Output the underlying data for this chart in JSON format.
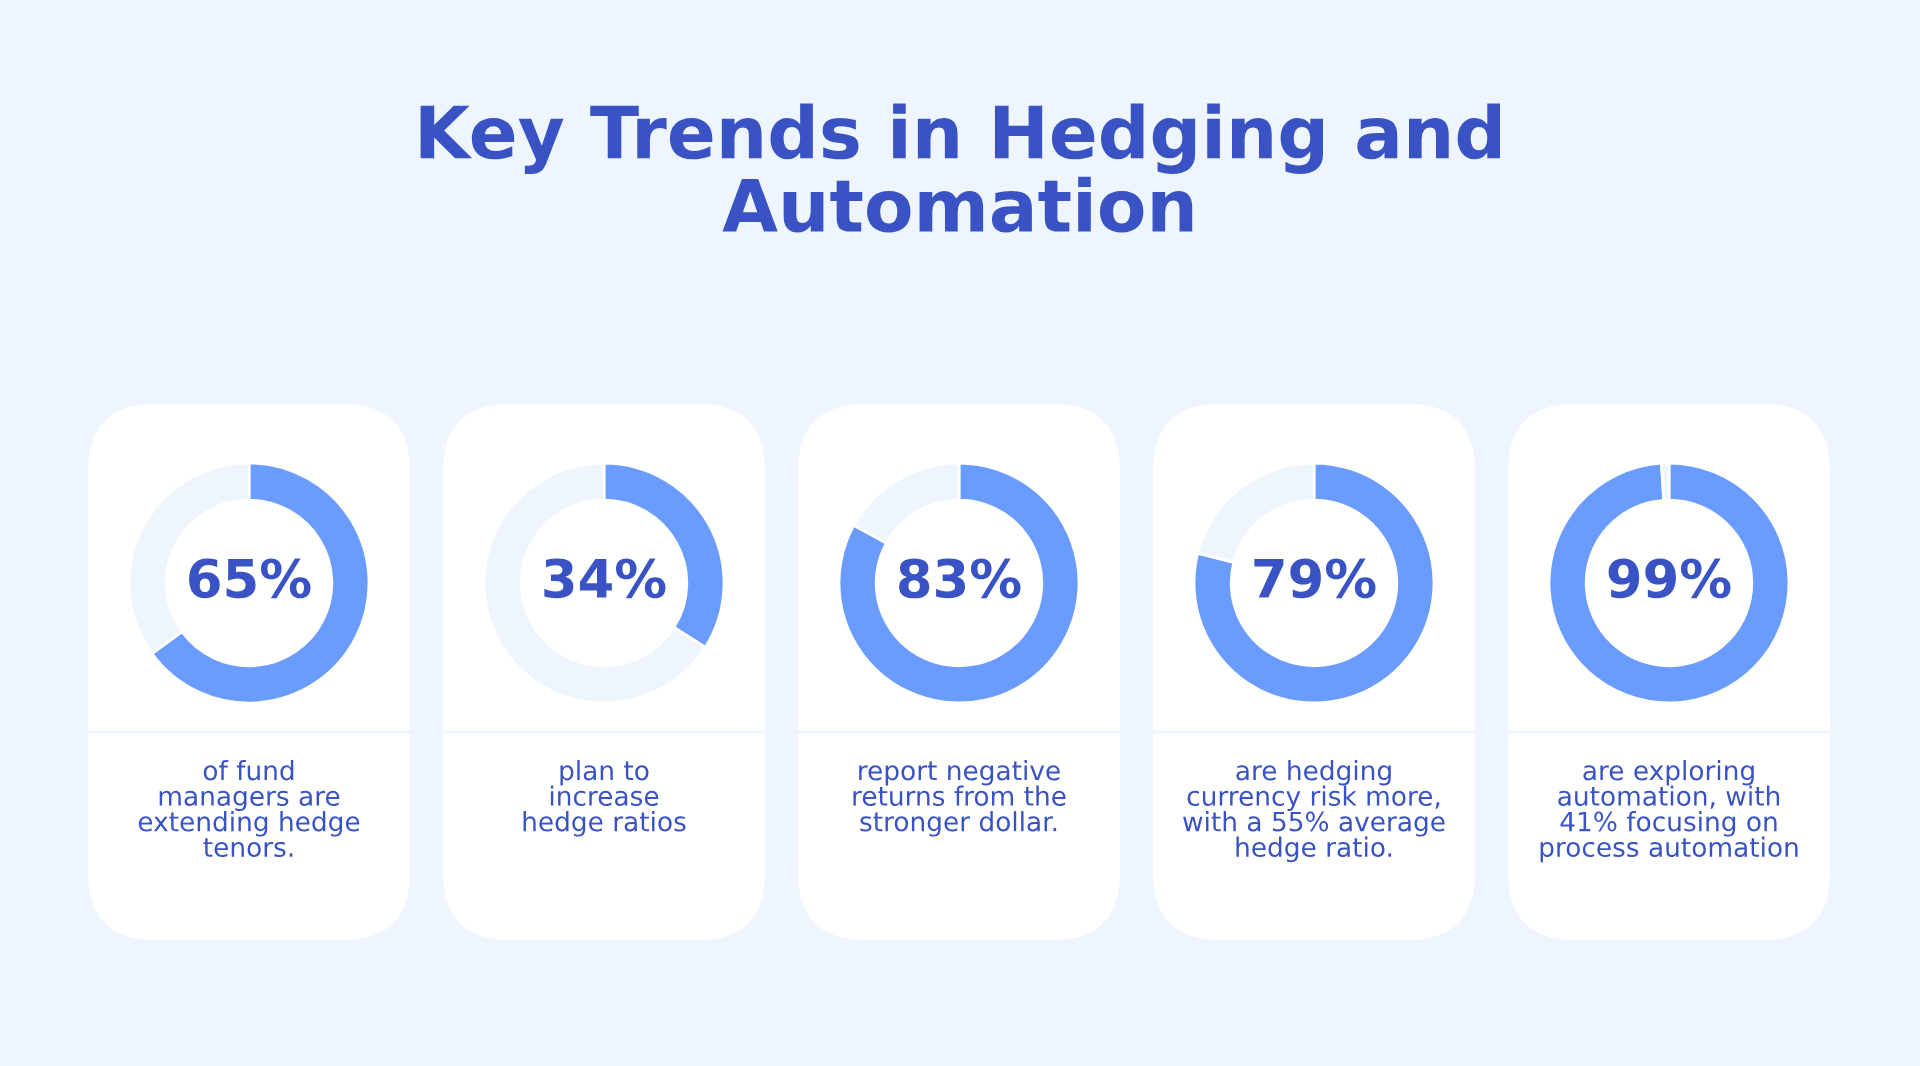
{
  "chart_data": [
    {
      "type": "other",
      "title": "Key Trends in Hedging and\nAutomation"
    },
    {
      "type": "donut",
      "categories": [
        null,
        null
      ],
      "values": [
        65,
        35
      ],
      "colors": [
        "#6a9bff",
        "#eef5fd"
      ],
      "value_labels": [
        "65%",
        null
      ],
      "annotations": [
        "of fund\nmanagers are\nextending hedge\ntenors."
      ]
    },
    {
      "type": "donut",
      "categories": [
        null,
        null
      ],
      "values": [
        34,
        66
      ],
      "colors": [
        "#6a9bff",
        "#eef5fd"
      ],
      "value_labels": [
        "34%",
        null
      ],
      "annotations": [
        "plan to\nincrease\nhedge ratios"
      ]
    },
    {
      "type": "donut",
      "categories": [
        null,
        null
      ],
      "values": [
        83,
        17
      ],
      "colors": [
        "#6a9bff",
        "#eef5fd"
      ],
      "value_labels": [
        "83%",
        null
      ],
      "annotations": [
        "report negative\nreturns from the\nstronger dollar."
      ]
    },
    {
      "type": "donut",
      "categories": [
        null,
        null
      ],
      "values": [
        79,
        21
      ],
      "colors": [
        "#6a9bff",
        "#eef5fd"
      ],
      "value_labels": [
        "79%",
        null
      ],
      "annotations": [
        "are hedging\ncurrency risk more,\nwith a 55% average\nhedge ratio."
      ]
    },
    {
      "type": "donut",
      "categories": [
        null,
        null
      ],
      "values": [
        99,
        1
      ],
      "colors": [
        "#6a9bff",
        "#eef5fd"
      ],
      "value_labels": [
        "99%",
        null
      ],
      "annotations": [
        "are exploring\nautomation, with\n41% focusing on\nprocess automation"
      ]
    }
  ]
}
